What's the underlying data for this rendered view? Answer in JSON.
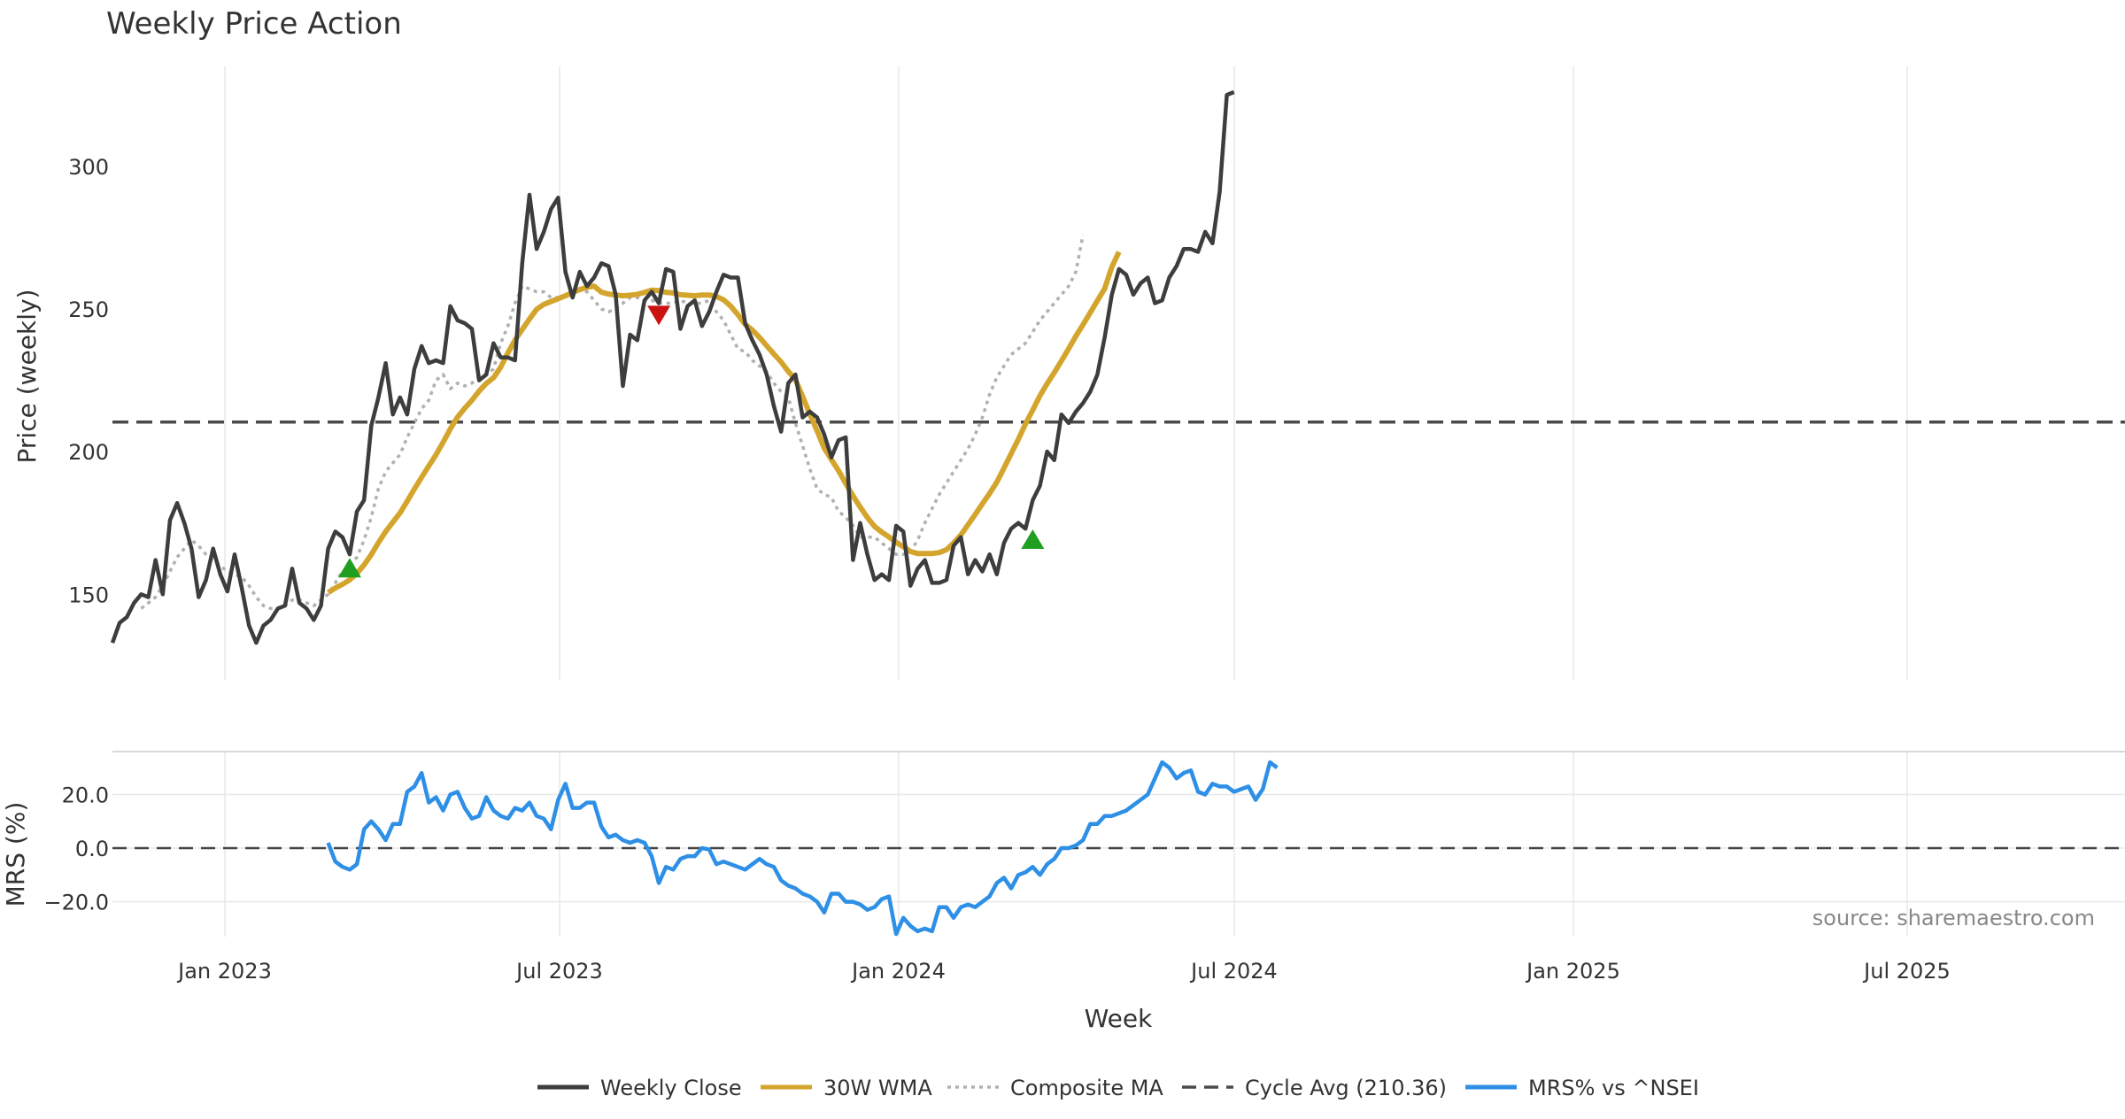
{
  "chart_data": {
    "type": "line",
    "title": "Weekly Price Action",
    "xlabel": "Week",
    "x_ticks": [
      "Jan 2023",
      "Jul 2023",
      "Jan 2024",
      "Jul 2024",
      "Jan 2025",
      "Jul 2025"
    ],
    "source": "source: sharemaestro.com",
    "grid": true,
    "legend_position": "bottom-center",
    "price_panel": {
      "ylabel": "Price (weekly)",
      "ylim": [
        120,
        335
      ],
      "y_ticks": [
        150,
        200,
        250,
        300
      ],
      "weekly_close": [
        133,
        140,
        142,
        147,
        150,
        149,
        162,
        150,
        176,
        182,
        175,
        166,
        149,
        155,
        166,
        157,
        151,
        164,
        152,
        139,
        133,
        139,
        141,
        145,
        146,
        159,
        147,
        145,
        141,
        146,
        166,
        172,
        170,
        164,
        179,
        183,
        209,
        219,
        231,
        213,
        219,
        213,
        229,
        237,
        231,
        232,
        231,
        251,
        246,
        245,
        243,
        225,
        227,
        238,
        233,
        233,
        232,
        266,
        290,
        271,
        277,
        285,
        289,
        263,
        254,
        263,
        258,
        261,
        266,
        265,
        255,
        223,
        241,
        239,
        253,
        256,
        252,
        264,
        263,
        243,
        251,
        253,
        244,
        249,
        256,
        262,
        261,
        261,
        245,
        239,
        234,
        227,
        216,
        207,
        224,
        227,
        212,
        214,
        212,
        206,
        198,
        204,
        205,
        162,
        175,
        164,
        155,
        157,
        155,
        174,
        172,
        153,
        159,
        162,
        154,
        154,
        155,
        167,
        170,
        157,
        162,
        158,
        164,
        157,
        168,
        173,
        175,
        173,
        183,
        188,
        200,
        197,
        213,
        210,
        214,
        217,
        221,
        227,
        240,
        255,
        264,
        262,
        255,
        259,
        261,
        252,
        253,
        261,
        265,
        271,
        271,
        270,
        277,
        273,
        291,
        325,
        326
      ],
      "wma_30w": [
        null,
        null,
        null,
        null,
        null,
        null,
        null,
        null,
        null,
        null,
        null,
        null,
        null,
        null,
        null,
        null,
        null,
        null,
        null,
        null,
        null,
        null,
        null,
        null,
        null,
        null,
        null,
        null,
        null,
        null,
        150.6,
        152.2,
        153.5,
        155.1,
        157.3,
        160.3,
        163.9,
        168.1,
        172.0,
        175.3,
        178.5,
        182.6,
        186.9,
        191.0,
        195.0,
        198.9,
        203.3,
        208.0,
        212.1,
        215.2,
        218.0,
        221.2,
        223.9,
        225.9,
        229.6,
        234.6,
        239.1,
        242.8,
        246.5,
        249.9,
        251.6,
        252.6,
        253.6,
        254.6,
        255.8,
        256.8,
        257.6,
        258.0,
        255.9,
        255.2,
        254.9,
        254.6,
        254.8,
        255.1,
        255.8,
        256.6,
        256.4,
        255.8,
        255.6,
        255.0,
        254.8,
        254.6,
        254.9,
        254.9,
        254.4,
        253.2,
        251.0,
        248.0,
        244.6,
        242.6,
        240.0,
        237.1,
        234.2,
        231.4,
        228.1,
        225.2,
        219.3,
        213.2,
        207.3,
        201.2,
        197.2,
        193.3,
        188.8,
        184.5,
        180.6,
        176.9,
        173.8,
        171.8,
        170.1,
        168.2,
        166.7,
        165.0,
        164.3,
        164.3,
        164.3,
        164.6,
        165.6,
        168.0,
        170.8,
        174.4,
        178.0,
        181.7,
        185.3,
        189.3,
        194.2,
        199.3,
        204.3,
        209.7,
        214.6,
        219.6,
        223.8,
        227.7,
        231.8,
        236.1,
        240.5,
        244.5,
        248.7,
        252.9,
        257.1,
        264.7,
        270.0
      ],
      "composite_ma": [
        null,
        null,
        null,
        null,
        145,
        147,
        149,
        153,
        158,
        163,
        166,
        169,
        167,
        164,
        162,
        160,
        158,
        157,
        156,
        153,
        149,
        146,
        145,
        145,
        146,
        148,
        148,
        147,
        146,
        148,
        150,
        154,
        158,
        160,
        163,
        169,
        177,
        187,
        193,
        196,
        199,
        205,
        210,
        215,
        218,
        225,
        227,
        222,
        224,
        223,
        224,
        226,
        227,
        229,
        238,
        244,
        252,
        258,
        257,
        256,
        256,
        254,
        254,
        255,
        256,
        257,
        256,
        253,
        250,
        249,
        250,
        252,
        254,
        254,
        253,
        253,
        252,
        252,
        252,
        253,
        252,
        252,
        252,
        253,
        249,
        246,
        241,
        236,
        235,
        232,
        230,
        228,
        224,
        221,
        219,
        210,
        202,
        194,
        187,
        185,
        184,
        179,
        177,
        174,
        170,
        170,
        170,
        168,
        166,
        164,
        164,
        165,
        169,
        175,
        180,
        185,
        189,
        193,
        197,
        201,
        206,
        212,
        220,
        226,
        230,
        234,
        236,
        238,
        242,
        246,
        249,
        252,
        255,
        258,
        263,
        276
      ],
      "cycle_avg": {
        "label": "Cycle Avg (210.36)",
        "value": 210.36
      },
      "signals": [
        {
          "type": "buy",
          "week": 33,
          "value": 159
        },
        {
          "type": "sell",
          "week": 76,
          "value": 248
        },
        {
          "type": "buy",
          "week": 128,
          "value": 169
        }
      ]
    },
    "mrs_panel": {
      "ylabel": "MRS (%)",
      "ylim": [
        -33,
        36
      ],
      "y_ticks": [
        "20.0",
        "0.0",
        "−20.0"
      ],
      "y_tick_values": [
        20,
        0,
        -20
      ],
      "mrs": [
        null,
        null,
        null,
        null,
        null,
        null,
        null,
        null,
        null,
        null,
        null,
        null,
        null,
        null,
        null,
        null,
        null,
        null,
        null,
        null,
        null,
        null,
        null,
        null,
        null,
        null,
        null,
        null,
        null,
        null,
        2,
        -5,
        -7,
        -8,
        -6,
        7,
        10,
        7,
        3,
        9,
        9,
        21,
        23,
        28,
        17,
        19,
        14,
        20,
        21,
        15,
        11,
        12,
        19,
        14,
        12,
        11,
        15,
        14,
        17,
        12,
        11,
        7,
        18,
        24,
        15,
        15,
        17,
        17,
        8,
        4,
        5,
        3,
        2,
        3,
        2,
        -3,
        -13,
        -7,
        -8,
        -4,
        -3,
        -3,
        0,
        -0.5,
        -6,
        -5,
        -6,
        -7,
        -8,
        -6,
        -4,
        -6,
        -7,
        -12,
        -14,
        -15,
        -17,
        -18,
        -20,
        -24,
        -17,
        -17,
        -20,
        -20,
        -21,
        -23,
        -22,
        -19,
        -18,
        -32,
        -26,
        -29,
        -31,
        -30,
        -31,
        -22,
        -22,
        -26,
        -22,
        -21,
        -22,
        -20,
        -18,
        -13,
        -11,
        -15,
        -10,
        -9,
        -7,
        -10,
        -6,
        -4,
        0,
        0,
        1,
        3,
        9,
        9,
        12,
        12,
        13,
        14,
        16,
        18,
        20,
        26,
        32,
        30,
        26,
        28,
        29,
        21,
        20,
        24,
        23,
        23,
        21,
        22,
        23,
        18,
        22,
        32,
        30
      ],
      "zero_line": 0
    },
    "legend": [
      {
        "label": "Weekly Close",
        "color": "#3d3d3d",
        "style": "solid"
      },
      {
        "label": "30W WMA",
        "color": "#d4a52c",
        "style": "solid"
      },
      {
        "label": "Composite MA",
        "color": "#b0b0b0",
        "style": "dotted"
      },
      {
        "label": "Cycle Avg (210.36)",
        "color": "#4a4a4a",
        "style": "dashed"
      },
      {
        "label": "MRS% vs ^NSEI",
        "color": "#2e8fe6",
        "style": "solid"
      }
    ],
    "colors": {
      "close": "#3d3d3d",
      "wma": "#d4a52c",
      "composite": "#b0b0b0",
      "cycle": "#4a4a4a",
      "mrs": "#2e8fe6",
      "buy": "#1f9e1f",
      "sell": "#cc1111",
      "grid": "#e8e8e8"
    }
  }
}
